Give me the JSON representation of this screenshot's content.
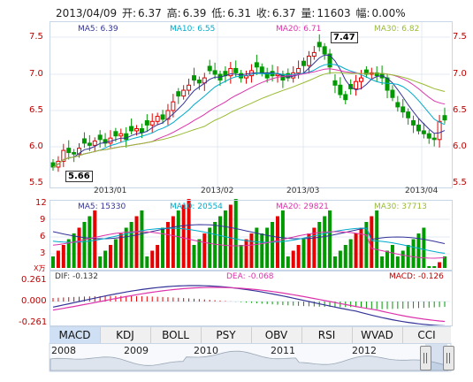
{
  "header": {
    "date": "2013/04/09",
    "open_label": "开:",
    "open": "6.37",
    "high_label": "高:",
    "high": "6.39",
    "low_label": "低:",
    "low": "6.31",
    "close_label": "收:",
    "close": "6.37",
    "volume_label": "量:",
    "volume": "11603",
    "change_label": "幅:",
    "change": "0.00%"
  },
  "price_panel": {
    "ma5": "MA5: 6.39",
    "ma10": "MA10: 6.55",
    "ma20": "MA20: 6.71",
    "ma30": "MA30: 6.82",
    "y_ticks": [
      "7.5",
      "7.0",
      "6.5",
      "6.0",
      "5.5"
    ],
    "x_ticks": [
      "2013/01",
      "2013/02",
      "2013/03",
      "2013/04"
    ],
    "max_callout": "7.47",
    "min_callout": "5.66"
  },
  "volume_panel": {
    "ma5": "MA5: 15330",
    "ma10": "MA10: 20554",
    "ma20": "MA20: 29821",
    "ma30": "MA30: 37713",
    "y_ticks": [
      "12",
      "9",
      "6",
      "3"
    ],
    "unit": "X万"
  },
  "macd_panel": {
    "dif": "DIF: -0.132",
    "dea": "DEA: -0.068",
    "macd": "MACD: -0.126",
    "y_ticks": [
      "0.261",
      "0.000",
      "-0.261"
    ]
  },
  "tabs": [
    "MACD",
    "KDJ",
    "BOLL",
    "PSY",
    "OBV",
    "RSI",
    "WVAD",
    "CCI"
  ],
  "active_tab": "MACD",
  "navigator": {
    "years": [
      "2008",
      "2009",
      "2010",
      "2011",
      "2012"
    ]
  },
  "colors": {
    "up": "#e60000",
    "down": "#009900",
    "ma5": "#333399",
    "ma10": "#00aacc",
    "ma20": "#dd33aa",
    "ma30": "#99bb33"
  },
  "chart_data": {
    "type": "candlestick",
    "title": "",
    "x_ticks": [
      "2013/01",
      "2013/02",
      "2013/03",
      "2013/04"
    ],
    "ylim": [
      5.5,
      7.6
    ],
    "ma_latest": {
      "MA5": 6.39,
      "MA10": 6.55,
      "MA20": 6.71,
      "MA30": 6.82
    },
    "max_price": 7.47,
    "min_price": 5.66
  }
}
